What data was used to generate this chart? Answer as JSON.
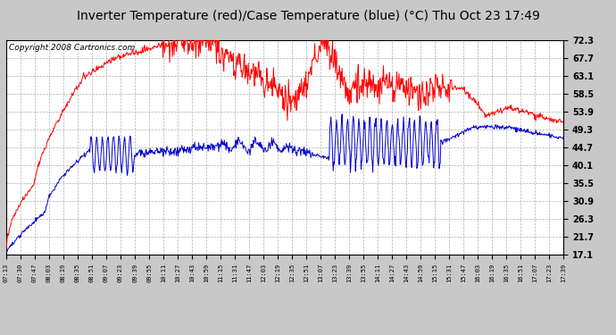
{
  "title": "Inverter Temperature (red)/Case Temperature (blue) (°C) Thu Oct 23 17:49",
  "copyright": "Copyright 2008 Cartronics.com",
  "yticks": [
    17.1,
    21.7,
    26.3,
    30.9,
    35.5,
    40.1,
    44.7,
    49.3,
    53.9,
    58.5,
    63.1,
    67.7,
    72.3
  ],
  "ymin": 17.1,
  "ymax": 72.3,
  "xtick_labels": [
    "07:13",
    "07:30",
    "07:47",
    "08:03",
    "08:19",
    "08:35",
    "08:51",
    "09:07",
    "09:23",
    "09:39",
    "09:55",
    "10:11",
    "10:27",
    "10:43",
    "10:59",
    "11:15",
    "11:31",
    "11:47",
    "12:03",
    "12:19",
    "12:35",
    "12:51",
    "13:07",
    "13:23",
    "13:39",
    "13:55",
    "14:11",
    "14:27",
    "14:43",
    "14:59",
    "15:15",
    "15:31",
    "15:47",
    "16:03",
    "16:19",
    "16:35",
    "16:51",
    "17:07",
    "17:23",
    "17:39"
  ],
  "bg_color": "#c8c8c8",
  "plot_bg_color": "#ffffff",
  "grid_color": "#b0b0b0",
  "red_color": "#ff0000",
  "blue_color": "#0000cc",
  "title_color": "#000000",
  "title_fontsize": 10,
  "copyright_fontsize": 6.5
}
